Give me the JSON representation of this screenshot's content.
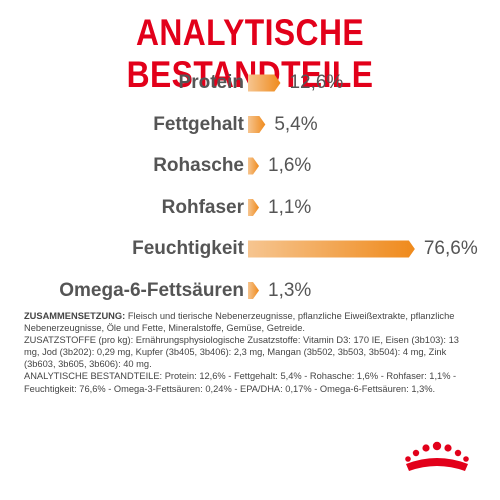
{
  "header": {
    "title": "ANALYTISCHE BESTANDTEILE"
  },
  "chart_data": {
    "type": "bar",
    "title": "ANALYTISCHE BESTANDTEILE",
    "orientation": "horizontal",
    "categories": [
      "Protein",
      "Fettgehalt",
      "Rohasche",
      "Rohfaser",
      "Feuchtigkeit",
      "Omega-6-Fettsäuren"
    ],
    "values": [
      12.6,
      5.4,
      1.6,
      1.1,
      76.6,
      1.3
    ],
    "value_labels": [
      "12,6%",
      "5,4%",
      "1,6%",
      "1,1%",
      "76,6%",
      "1,3%"
    ],
    "unit": "%",
    "bar_color": "#ef8a1c",
    "bar_color_light": "#f6c590",
    "grid": false
  },
  "composition": {
    "heading": "ZUSAMMENSETZUNG:",
    "text": "Fleisch und tierische Nebenerzeugnisse, pflanzliche Eiweißextrakte, pflanzliche Nebenerzeugnisse, Öle und Fette, Mineralstoffe, Gemüse, Getreide.",
    "additives": "ZUSATZSTOFFE (pro kg): Ernährungsphysiologische Zusatzstoffe: Vitamin D3: 170 IE, Eisen (3b103): 13 mg, Jod (3b202): 0,29 mg, Kupfer (3b405, 3b406): 2,3 mg, Mangan (3b502, 3b503, 3b504): 4 mg, Zink (3b603, 3b605, 3b606): 40 mg.",
    "analytical": "ANALYTISCHE BESTANDTEILE: Protein: 12,6% - Fettgehalt: 5,4% - Rohasche: 1,6% - Rohfaser: 1,1% - Feuchtigkeit: 76,6% - Omega-3-Fettsäuren: 0,24% - EPA/DHA: 0,17% - Omega-6-Fettsäuren: 1,3%."
  },
  "colors": {
    "title": "#e2001a",
    "text": "#555555",
    "logo": "#e2001a"
  },
  "logo": {
    "icon": "crown-icon"
  }
}
